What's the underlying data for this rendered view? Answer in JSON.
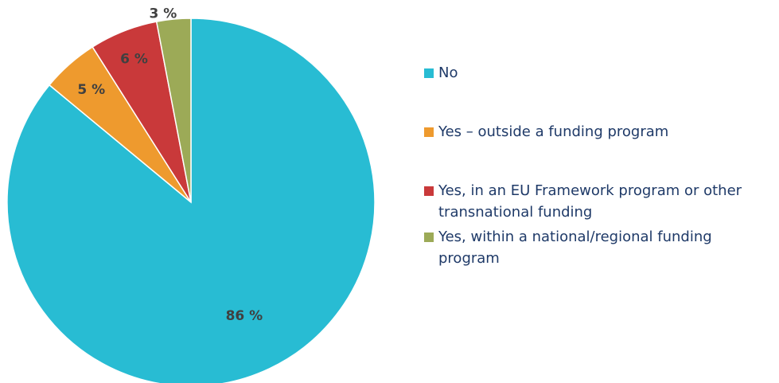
{
  "chart_data": {
    "type": "pie",
    "start": "12 o'clock",
    "direction": "clockwise",
    "slices": [
      {
        "label": "No",
        "value": 86,
        "display": "86 %",
        "color": "#28BCD3"
      },
      {
        "label": "Yes – outside a funding program",
        "value": 5,
        "display": "5 %",
        "color": "#EE9A2E"
      },
      {
        "label": "Yes, in an EU Framework program or other transnational funding",
        "value": 6,
        "display": "6 %",
        "color": "#C9393A"
      },
      {
        "label": "Yes, within a national/regional funding program",
        "value": 3,
        "display": "3 %",
        "color": "#9CAA57"
      }
    ],
    "legend_position": "right"
  },
  "legend": {
    "items": [
      {
        "label": "No",
        "color": "#28BCD3"
      },
      {
        "label": "Yes – outside a funding program",
        "color": "#EE9A2E"
      },
      {
        "label": "Yes, in an EU Framework program or other transnational funding",
        "color": "#C9393A"
      },
      {
        "label": "Yes, within a national/regional funding program",
        "color": "#9CAA57"
      }
    ]
  }
}
